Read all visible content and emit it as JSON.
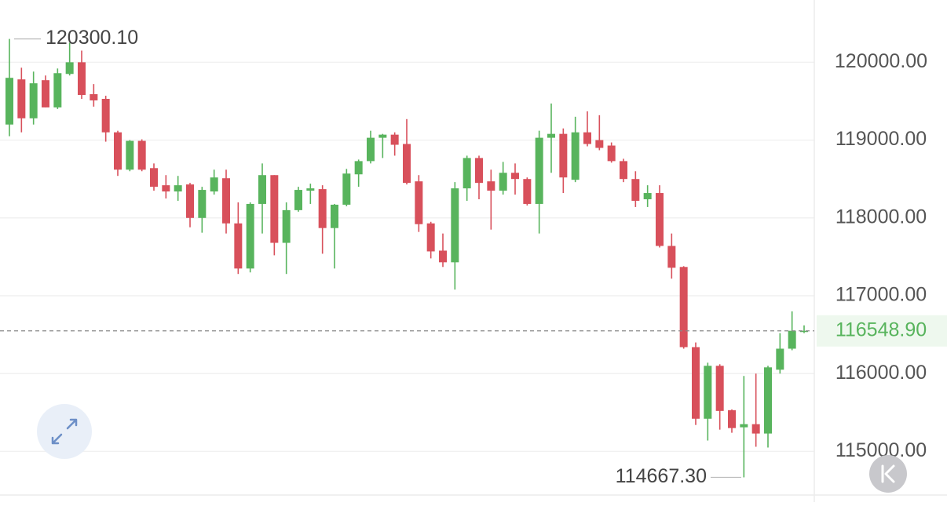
{
  "chart_data": {
    "type": "candlestick",
    "up_color": "#58b45d",
    "down_color": "#d8505b",
    "ylim": [
      114450,
      120800
    ],
    "yticks": [
      {
        "value": 115000,
        "label": "115000.00"
      },
      {
        "value": 116000,
        "label": "116000.00"
      },
      {
        "value": 117000,
        "label": "117000.00"
      },
      {
        "value": 118000,
        "label": "118000.00"
      },
      {
        "value": 119000,
        "label": "119000.00"
      },
      {
        "value": 120000,
        "label": "120000.00"
      }
    ],
    "grid": true,
    "open": [
      119200,
      119780,
      119280,
      119770,
      119420,
      119850,
      120000,
      119590,
      119530,
      119100,
      118620,
      118990,
      118640,
      118420,
      118340,
      118430,
      118000,
      118340,
      118510,
      117930,
      117350,
      118180,
      118550,
      117680,
      118100,
      118350,
      118370,
      117870,
      118170,
      118560,
      118730,
      119030,
      119070,
      118950,
      118470,
      117930,
      117580,
      117430,
      118380,
      118770,
      118470,
      118350,
      118580,
      118500,
      118180,
      119030,
      119080,
      118490,
      119100,
      119000,
      118930,
      118730,
      118500,
      118240,
      118320,
      117640,
      117370,
      116340,
      115420,
      116100,
      115530,
      115310,
      115350,
      115230,
      116050,
      116320,
      116540
    ],
    "high": [
      120300.1,
      119930,
      119880,
      119830,
      119920,
      120250,
      120150,
      119720,
      119570,
      119120,
      119000,
      119010,
      118700,
      118550,
      118540,
      118450,
      118400,
      118620,
      118620,
      118200,
      118200,
      118700,
      118550,
      118200,
      118400,
      118440,
      118420,
      118180,
      118630,
      118750,
      119120,
      119080,
      119100,
      119270,
      118550,
      117950,
      117800,
      118460,
      118800,
      118800,
      118620,
      118720,
      118700,
      118520,
      119120,
      119470,
      119150,
      119300,
      119370,
      119320,
      118970,
      118760,
      118600,
      118420,
      118420,
      117800,
      117380,
      116400,
      116140,
      116120,
      115540,
      115970,
      116000,
      116100,
      116520,
      116800,
      116620
    ],
    "low": [
      119050,
      119100,
      119200,
      119420,
      119400,
      119830,
      119530,
      119430,
      118980,
      118540,
      118600,
      118600,
      118350,
      118250,
      118220,
      117880,
      117810,
      118300,
      117800,
      117280,
      117300,
      117800,
      117520,
      117280,
      118080,
      118180,
      117540,
      117350,
      118150,
      118400,
      118700,
      118770,
      118800,
      118430,
      117820,
      117480,
      117370,
      117080,
      118220,
      118240,
      117850,
      118300,
      118300,
      118160,
      117800,
      118580,
      118320,
      118460,
      118920,
      118870,
      118710,
      118460,
      118140,
      118140,
      117620,
      117220,
      116320,
      115340,
      115140,
      115280,
      115240,
      114667.3,
      115060,
      115050,
      116000,
      116300,
      116520
    ],
    "close": [
      119800,
      119280,
      119730,
      119420,
      119860,
      120000,
      119580,
      119510,
      119100,
      118620,
      118990,
      118620,
      118400,
      118340,
      118420,
      118000,
      118360,
      118520,
      117930,
      117350,
      118180,
      118550,
      117680,
      118100,
      118360,
      118380,
      117870,
      118170,
      118570,
      118730,
      119030,
      119070,
      118940,
      118450,
      117920,
      117570,
      117430,
      118380,
      118770,
      118450,
      118350,
      118580,
      118500,
      118180,
      119030,
      119080,
      118520,
      119100,
      118950,
      118900,
      118730,
      118500,
      118220,
      118320,
      117640,
      117360,
      116340,
      115420,
      116100,
      115520,
      115300,
      115350,
      115230,
      116080,
      116320,
      116550,
      116548.9
    ],
    "annotations": [
      {
        "value": 120300.1,
        "label": "120300.10"
      },
      {
        "value": 114667.3,
        "label": "114667.30"
      }
    ],
    "last_price": {
      "value": 116548.9,
      "label": "116548.90"
    }
  }
}
